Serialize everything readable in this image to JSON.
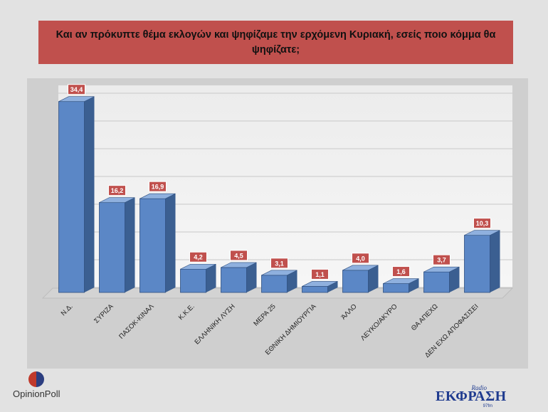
{
  "title": "Και αν πρόκυπτε θέμα εκλογών και ψηφίζαμε την ερχόμενη Κυριακή, εσείς ποιο κόμμα θα ψηφίζατε;",
  "logos": {
    "left": "OpinionPoll",
    "right_top": "Radio",
    "right_main": "ΕΚΦΡΑΣΗ",
    "right_sub": "97fm"
  },
  "colors": {
    "title_bg": "#c0504d",
    "bar_front": "#5b87c6",
    "bar_side": "#3b5f91",
    "bar_top": "#8fb0de",
    "label_bg": "#c0504d"
  },
  "chart_data": {
    "type": "bar",
    "title": "Και αν πρόκυπτε θέμα εκλογών και ψηφίζαμε την ερχόμενη Κυριακή, εσείς ποιο κόμμα θα ψηφίζατε;",
    "categories": [
      "Ν.Δ.",
      "ΣΥΡΙΖΑ",
      "ΠΑΣΟΚ-ΚΙΝΑΛ",
      "Κ.Κ.Ε.",
      "ΕΛΛΗΝΙΚΗ ΛΥΣΗ",
      "ΜΕΡΑ 25",
      "ΕΘΝΙΚΗ ΔΗΜΙΟΥΡΓΙΑ",
      "ΆΛΛΟ",
      "ΛΕΥΚΟ/ΑΚΥΡΟ",
      "ΘΑ ΑΠΕΧΩ",
      "ΔΕΝ ΕΧΩ ΑΠΟΦΑΣΙΣΕΙ"
    ],
    "values": [
      34.4,
      16.2,
      16.9,
      4.2,
      4.5,
      3.1,
      1.1,
      4.0,
      1.6,
      3.7,
      10.3
    ],
    "value_labels": [
      "34,4",
      "16,2",
      "16,9",
      "4,2",
      "4,5",
      "3,1",
      "1,1",
      "4,0",
      "1,6",
      "3,7",
      "10,3"
    ],
    "xlabel": "",
    "ylabel": "",
    "ylim": [
      0,
      35
    ],
    "grid": true,
    "legend": "none"
  }
}
